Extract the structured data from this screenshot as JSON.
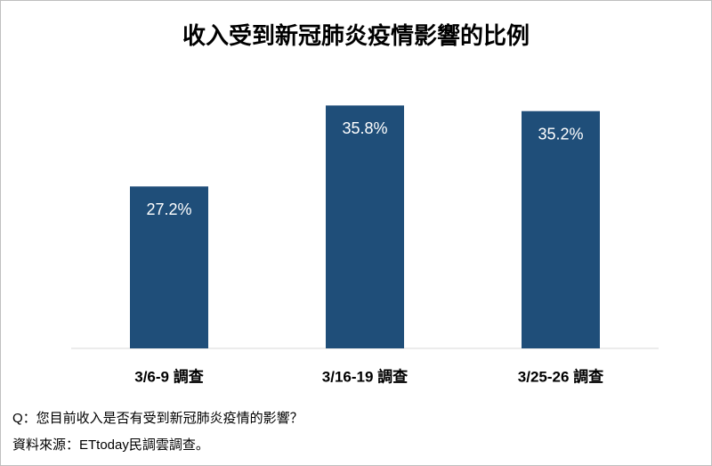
{
  "chart_data": {
    "type": "bar",
    "title": "收入受到新冠肺炎疫情影響的比例",
    "categories": [
      "3/6-9 調查",
      "3/16-19 調查",
      "3/25-26 調查"
    ],
    "values": [
      27.2,
      35.8,
      35.2
    ],
    "value_labels": [
      "27.2%",
      "35.8%",
      "35.2%"
    ],
    "color": "#1f4e79",
    "ylim": [
      10,
      40
    ],
    "grid": false,
    "question": "Q：您目前收入是否有受到新冠肺炎疫情的影響？",
    "source": "資料來源：ETtoday民調雲調查。"
  }
}
